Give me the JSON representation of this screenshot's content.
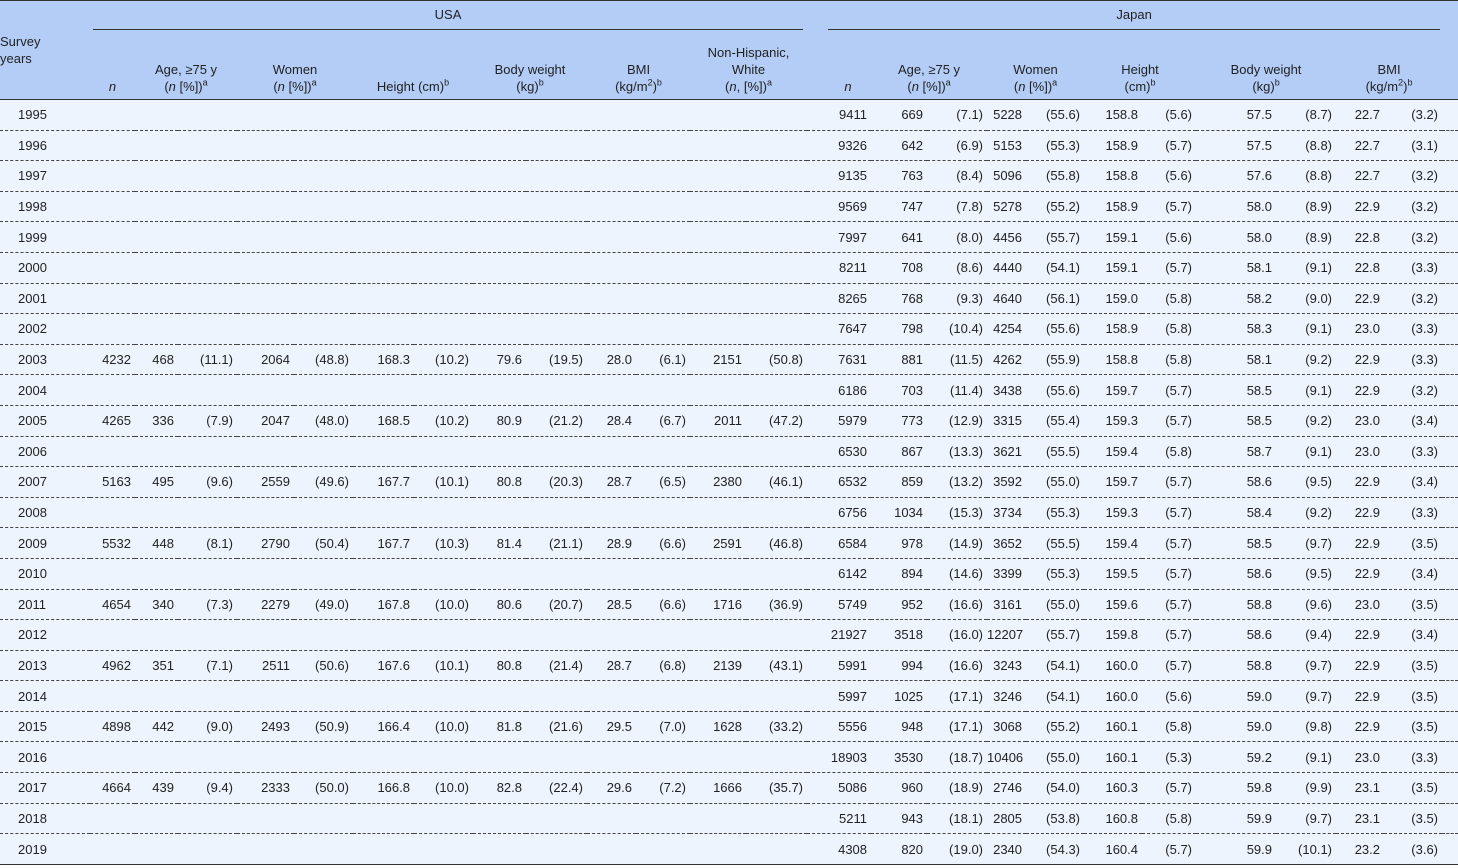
{
  "header": {
    "survey_years": [
      "Survey",
      "years"
    ],
    "usa": "USA",
    "japan": "Japan",
    "n": "n",
    "age": [
      "Age, ≥75 y",
      "(",
      "n",
      " [%])",
      "a"
    ],
    "women": [
      "Women",
      "(",
      "n",
      " [%])",
      "a"
    ],
    "usa_height": [
      "Height (cm)",
      "b"
    ],
    "weight": [
      "Body weight",
      "(kg)",
      "b"
    ],
    "bmi": [
      "BMI",
      "(kg/m",
      "2",
      ")",
      "b"
    ],
    "white": [
      "Non-Hispanic,",
      "White",
      "(",
      "n",
      ", [%])",
      "a"
    ],
    "japan_height": [
      "Height",
      "(cm)",
      "b"
    ]
  },
  "rows": [
    {
      "year": "1995",
      "usa": null,
      "japan": [
        "9411",
        "669",
        "(7.1)",
        "5228",
        "(55.6)",
        "158.8",
        "(5.6)",
        "57.5",
        "(8.7)",
        "22.7",
        "(3.2)"
      ]
    },
    {
      "year": "1996",
      "usa": null,
      "japan": [
        "9326",
        "642",
        "(6.9)",
        "5153",
        "(55.3)",
        "158.9",
        "(5.7)",
        "57.5",
        "(8.8)",
        "22.7",
        "(3.1)"
      ]
    },
    {
      "year": "1997",
      "usa": null,
      "japan": [
        "9135",
        "763",
        "(8.4)",
        "5096",
        "(55.8)",
        "158.8",
        "(5.6)",
        "57.6",
        "(8.8)",
        "22.7",
        "(3.2)"
      ]
    },
    {
      "year": "1998",
      "usa": null,
      "japan": [
        "9569",
        "747",
        "(7.8)",
        "5278",
        "(55.2)",
        "158.9",
        "(5.7)",
        "58.0",
        "(8.9)",
        "22.9",
        "(3.2)"
      ]
    },
    {
      "year": "1999",
      "usa": null,
      "japan": [
        "7997",
        "641",
        "(8.0)",
        "4456",
        "(55.7)",
        "159.1",
        "(5.6)",
        "58.0",
        "(8.9)",
        "22.8",
        "(3.2)"
      ]
    },
    {
      "year": "2000",
      "usa": null,
      "japan": [
        "8211",
        "708",
        "(8.6)",
        "4440",
        "(54.1)",
        "159.1",
        "(5.7)",
        "58.1",
        "(9.1)",
        "22.8",
        "(3.3)"
      ]
    },
    {
      "year": "2001",
      "usa": null,
      "japan": [
        "8265",
        "768",
        "(9.3)",
        "4640",
        "(56.1)",
        "159.0",
        "(5.8)",
        "58.2",
        "(9.0)",
        "22.9",
        "(3.2)"
      ]
    },
    {
      "year": "2002",
      "usa": null,
      "japan": [
        "7647",
        "798",
        "(10.4)",
        "4254",
        "(55.6)",
        "158.9",
        "(5.8)",
        "58.3",
        "(9.1)",
        "23.0",
        "(3.3)"
      ]
    },
    {
      "year": "2003",
      "usa": [
        "4232",
        "468",
        "(11.1)",
        "2064",
        "(48.8)",
        "168.3",
        "(10.2)",
        "79.6",
        "(19.5)",
        "28.0",
        "(6.1)",
        "2151",
        "(50.8)"
      ],
      "japan": [
        "7631",
        "881",
        "(11.5)",
        "4262",
        "(55.9)",
        "158.8",
        "(5.8)",
        "58.1",
        "(9.2)",
        "22.9",
        "(3.3)"
      ]
    },
    {
      "year": "2004",
      "usa": null,
      "japan": [
        "6186",
        "703",
        "(11.4)",
        "3438",
        "(55.6)",
        "159.7",
        "(5.7)",
        "58.5",
        "(9.1)",
        "22.9",
        "(3.2)"
      ]
    },
    {
      "year": "2005",
      "usa": [
        "4265",
        "336",
        "(7.9)",
        "2047",
        "(48.0)",
        "168.5",
        "(10.2)",
        "80.9",
        "(21.2)",
        "28.4",
        "(6.7)",
        "2011",
        "(47.2)"
      ],
      "japan": [
        "5979",
        "773",
        "(12.9)",
        "3315",
        "(55.4)",
        "159.3",
        "(5.7)",
        "58.5",
        "(9.2)",
        "23.0",
        "(3.4)"
      ]
    },
    {
      "year": "2006",
      "usa": null,
      "japan": [
        "6530",
        "867",
        "(13.3)",
        "3621",
        "(55.5)",
        "159.4",
        "(5.8)",
        "58.7",
        "(9.1)",
        "23.0",
        "(3.3)"
      ]
    },
    {
      "year": "2007",
      "usa": [
        "5163",
        "495",
        "(9.6)",
        "2559",
        "(49.6)",
        "167.7",
        "(10.1)",
        "80.8",
        "(20.3)",
        "28.7",
        "(6.5)",
        "2380",
        "(46.1)"
      ],
      "japan": [
        "6532",
        "859",
        "(13.2)",
        "3592",
        "(55.0)",
        "159.7",
        "(5.7)",
        "58.6",
        "(9.5)",
        "22.9",
        "(3.4)"
      ]
    },
    {
      "year": "2008",
      "usa": null,
      "japan": [
        "6756",
        "1034",
        "(15.3)",
        "3734",
        "(55.3)",
        "159.3",
        "(5.7)",
        "58.4",
        "(9.2)",
        "22.9",
        "(3.3)"
      ]
    },
    {
      "year": "2009",
      "usa": [
        "5532",
        "448",
        "(8.1)",
        "2790",
        "(50.4)",
        "167.7",
        "(10.3)",
        "81.4",
        "(21.1)",
        "28.9",
        "(6.6)",
        "2591",
        "(46.8)"
      ],
      "japan": [
        "6584",
        "978",
        "(14.9)",
        "3652",
        "(55.5)",
        "159.4",
        "(5.7)",
        "58.5",
        "(9.7)",
        "22.9",
        "(3.5)"
      ]
    },
    {
      "year": "2010",
      "usa": null,
      "japan": [
        "6142",
        "894",
        "(14.6)",
        "3399",
        "(55.3)",
        "159.5",
        "(5.7)",
        "58.6",
        "(9.5)",
        "22.9",
        "(3.4)"
      ]
    },
    {
      "year": "2011",
      "usa": [
        "4654",
        "340",
        "(7.3)",
        "2279",
        "(49.0)",
        "167.8",
        "(10.0)",
        "80.6",
        "(20.7)",
        "28.5",
        "(6.6)",
        "1716",
        "(36.9)"
      ],
      "japan": [
        "5749",
        "952",
        "(16.6)",
        "3161",
        "(55.0)",
        "159.6",
        "(5.7)",
        "58.8",
        "(9.6)",
        "23.0",
        "(3.5)"
      ]
    },
    {
      "year": "2012",
      "usa": null,
      "japan": [
        "21927",
        "3518",
        "(16.0)",
        "12207",
        "(55.7)",
        "159.8",
        "(5.7)",
        "58.6",
        "(9.4)",
        "22.9",
        "(3.4)"
      ]
    },
    {
      "year": "2013",
      "usa": [
        "4962",
        "351",
        "(7.1)",
        "2511",
        "(50.6)",
        "167.6",
        "(10.1)",
        "80.8",
        "(21.4)",
        "28.7",
        "(6.8)",
        "2139",
        "(43.1)"
      ],
      "japan": [
        "5991",
        "994",
        "(16.6)",
        "3243",
        "(54.1)",
        "160.0",
        "(5.7)",
        "58.8",
        "(9.7)",
        "22.9",
        "(3.5)"
      ]
    },
    {
      "year": "2014",
      "usa": null,
      "japan": [
        "5997",
        "1025",
        "(17.1)",
        "3246",
        "(54.1)",
        "160.0",
        "(5.6)",
        "59.0",
        "(9.7)",
        "22.9",
        "(3.5)"
      ]
    },
    {
      "year": "2015",
      "usa": [
        "4898",
        "442",
        "(9.0)",
        "2493",
        "(50.9)",
        "166.4",
        "(10.0)",
        "81.8",
        "(21.6)",
        "29.5",
        "(7.0)",
        "1628",
        "(33.2)"
      ],
      "japan": [
        "5556",
        "948",
        "(17.1)",
        "3068",
        "(55.2)",
        "160.1",
        "(5.8)",
        "59.0",
        "(9.8)",
        "22.9",
        "(3.5)"
      ]
    },
    {
      "year": "2016",
      "usa": null,
      "japan": [
        "18903",
        "3530",
        "(18.7)",
        "10406",
        "(55.0)",
        "160.1",
        "(5.3)",
        "59.2",
        "(9.1)",
        "23.0",
        "(3.3)"
      ]
    },
    {
      "year": "2017",
      "usa": [
        "4664",
        "439",
        "(9.4)",
        "2333",
        "(50.0)",
        "166.8",
        "(10.0)",
        "82.8",
        "(22.4)",
        "29.6",
        "(7.2)",
        "1666",
        "(35.7)"
      ],
      "japan": [
        "5086",
        "960",
        "(18.9)",
        "2746",
        "(54.0)",
        "160.3",
        "(5.7)",
        "59.8",
        "(9.9)",
        "23.1",
        "(3.5)"
      ]
    },
    {
      "year": "2018",
      "usa": null,
      "japan": [
        "5211",
        "943",
        "(18.1)",
        "2805",
        "(53.8)",
        "160.8",
        "(5.8)",
        "59.9",
        "(9.7)",
        "23.1",
        "(3.5)"
      ]
    },
    {
      "year": "2019",
      "usa": null,
      "japan": [
        "4308",
        "820",
        "(19.0)",
        "2340",
        "(54.3)",
        "160.4",
        "(5.7)",
        "59.9",
        "(10.1)",
        "23.2",
        "(3.6)"
      ]
    }
  ]
}
